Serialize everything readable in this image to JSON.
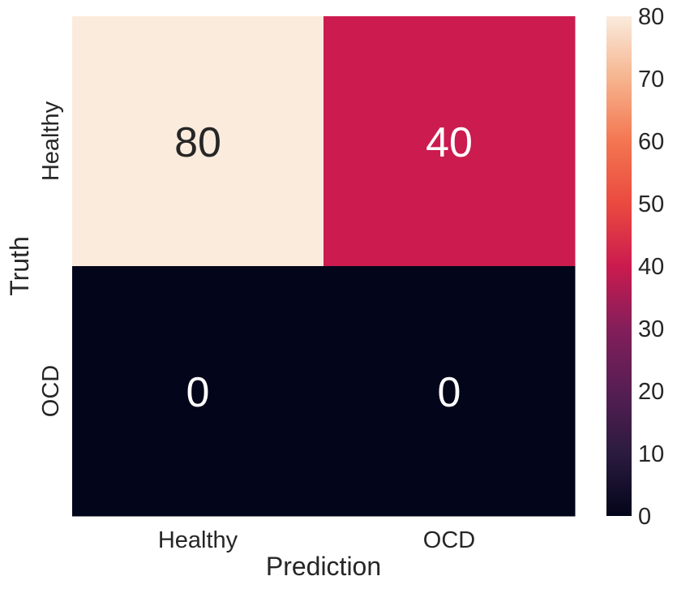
{
  "chart_data": {
    "type": "heatmap",
    "title": "",
    "xlabel": "Prediction",
    "ylabel": "Truth",
    "x_categories": [
      "Healthy",
      "OCD"
    ],
    "y_categories": [
      "Healthy",
      "OCD"
    ],
    "values": [
      [
        80,
        40
      ],
      [
        0,
        0
      ]
    ],
    "colorbar": {
      "min": 0,
      "max": 80,
      "ticks": [
        "0",
        "10",
        "20",
        "30",
        "40",
        "50",
        "60",
        "70",
        "80"
      ],
      "placement": "right"
    },
    "colormap": {
      "name": "rocket",
      "stops": [
        {
          "t": 0.0,
          "color": "#03051a"
        },
        {
          "t": 0.125,
          "color": "#2b1b3f"
        },
        {
          "t": 0.25,
          "color": "#561e53"
        },
        {
          "t": 0.375,
          "color": "#841e5a"
        },
        {
          "t": 0.5,
          "color": "#cb1b4f"
        },
        {
          "t": 0.625,
          "color": "#ea4a3f"
        },
        {
          "t": 0.75,
          "color": "#f37651"
        },
        {
          "t": 0.875,
          "color": "#f6b48e"
        },
        {
          "t": 1.0,
          "color": "#faebdd"
        }
      ]
    },
    "annotation_colors": {
      "light": "#ffffff",
      "dark": "#262626"
    }
  }
}
